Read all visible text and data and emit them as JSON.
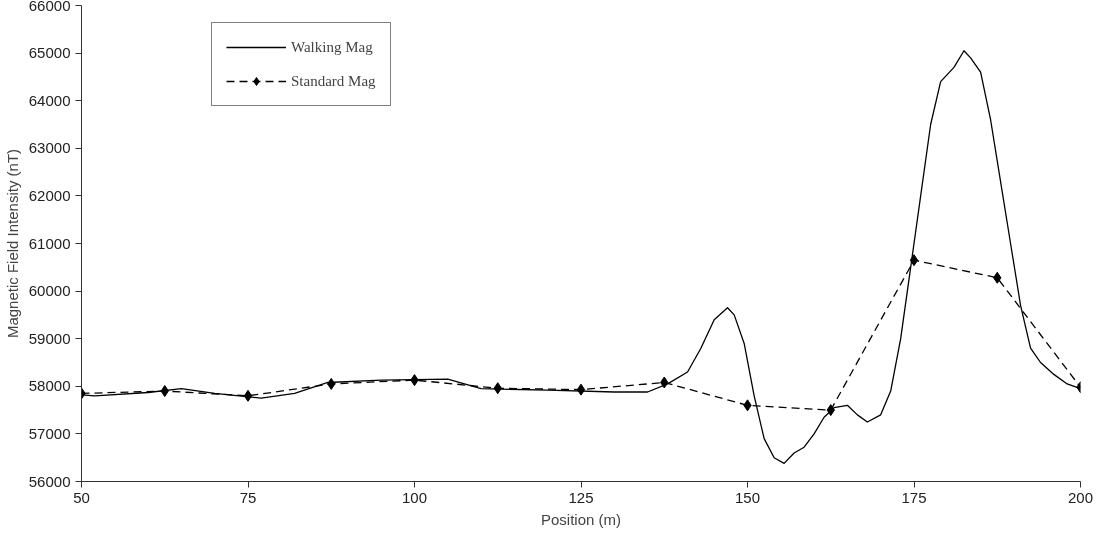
{
  "chart_data": {
    "type": "line",
    "xlabel": "Position (m)",
    "ylabel": "Magnetic Field Intensity (nT)",
    "xlim": [
      50,
      200
    ],
    "xticks": [
      50,
      75,
      100,
      125,
      150,
      175,
      200
    ],
    "ylim": [
      56000,
      66000
    ],
    "yticks": [
      56000,
      57000,
      58000,
      59000,
      60000,
      61000,
      62000,
      63000,
      64000,
      65000,
      66000
    ],
    "grid": false,
    "legend": "top left",
    "series": [
      {
        "name": "Walking Mag",
        "color": "#000000",
        "line_style": "solid",
        "marker": "none",
        "x": [
          50,
          52,
          60,
          65,
          70,
          77,
          82,
          87,
          95,
          105,
          110,
          120,
          130,
          135,
          138,
          141,
          143,
          145,
          147,
          148,
          149.5,
          151,
          152.5,
          154,
          155.5,
          157,
          158.5,
          160,
          161.5,
          163,
          165,
          166.5,
          168,
          170,
          171.5,
          173,
          174.5,
          176,
          177.5,
          179,
          181,
          182.5,
          183.5,
          185,
          186.5,
          188,
          189.5,
          191,
          192.5,
          194,
          196,
          198,
          200
        ],
        "values": [
          57820,
          57800,
          57870,
          57950,
          57850,
          57750,
          57850,
          58080,
          58130,
          58150,
          57950,
          57920,
          57880,
          57880,
          58050,
          58300,
          58800,
          59400,
          59650,
          59500,
          58900,
          57800,
          56900,
          56500,
          56380,
          56600,
          56720,
          57000,
          57350,
          57550,
          57600,
          57400,
          57250,
          57400,
          57900,
          59000,
          60500,
          62000,
          63500,
          64400,
          64700,
          65050,
          64900,
          64600,
          63600,
          62300,
          61000,
          59700,
          58800,
          58500,
          58250,
          58050,
          57950
        ]
      },
      {
        "name": "Standard Mag",
        "color": "#000000",
        "line_style": "dashed",
        "marker": "diamond",
        "x": [
          50,
          62.5,
          75,
          87.5,
          100,
          112.5,
          125,
          137.5,
          150,
          162.5,
          175,
          187.5,
          200
        ],
        "values": [
          57850,
          57900,
          57800,
          58050,
          58130,
          57960,
          57930,
          58080,
          57600,
          57500,
          60650,
          60280,
          57980
        ]
      }
    ]
  }
}
